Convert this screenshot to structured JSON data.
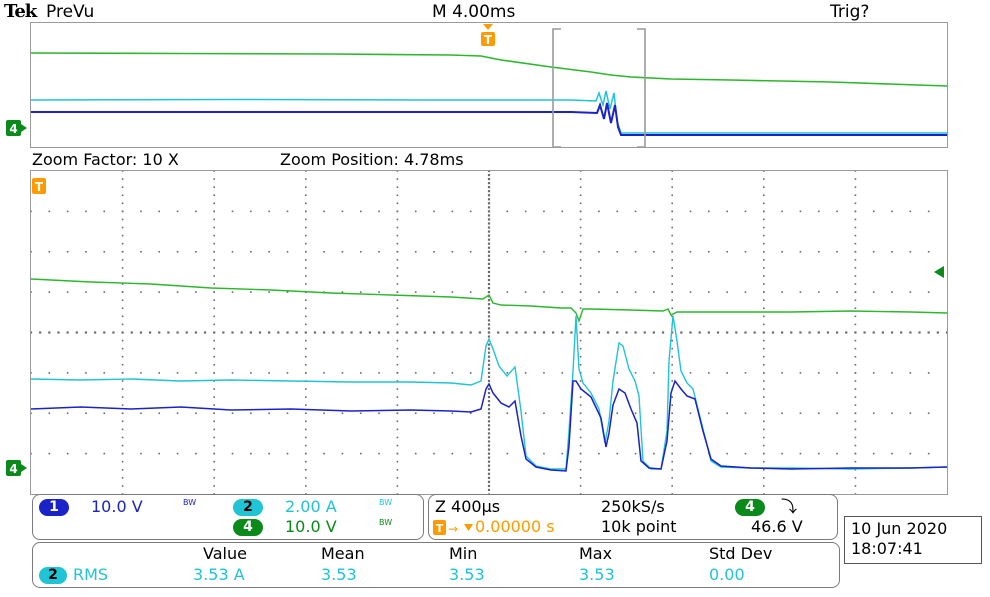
{
  "header": {
    "brand": "Tek",
    "mode": "PreVu",
    "timebase": "M 4.00ms",
    "trigger_status": "Trig?"
  },
  "zoom": {
    "factor_label": "Zoom Factor: 10 X",
    "position_label": "Zoom Position: 4.78ms"
  },
  "markers": {
    "trigger_glyph": "T",
    "ch4_glyph": "4"
  },
  "channels": {
    "ch1": {
      "number": "1",
      "scale": "10.0 V",
      "bw": "BW",
      "color": "#1a22c8"
    },
    "ch2": {
      "number": "2",
      "scale": "2.00 A",
      "bw": "BW",
      "color": "#20c4d4"
    },
    "ch4": {
      "number": "4",
      "scale": "10.0 V",
      "bw": "BW",
      "color": "#0a8a1a"
    }
  },
  "acquisition": {
    "zoom_time": "Z 400µs",
    "sample_rate": "250kS/s",
    "trigger_source": "4",
    "trigger_slope": "⤵",
    "trigger_offset": "0.00000 s",
    "record_length": "10k point",
    "trigger_level": "46.6 V"
  },
  "datetime": {
    "date": "10 Jun  2020",
    "time": "18:07:41"
  },
  "measurements": {
    "headers": [
      "Value",
      "Mean",
      "Min",
      "Max",
      "Std Dev"
    ],
    "row": {
      "channel": "2",
      "type": "RMS",
      "values": [
        "3.53 A",
        "3.53",
        "3.53",
        "3.53",
        "0.00"
      ]
    }
  }
}
